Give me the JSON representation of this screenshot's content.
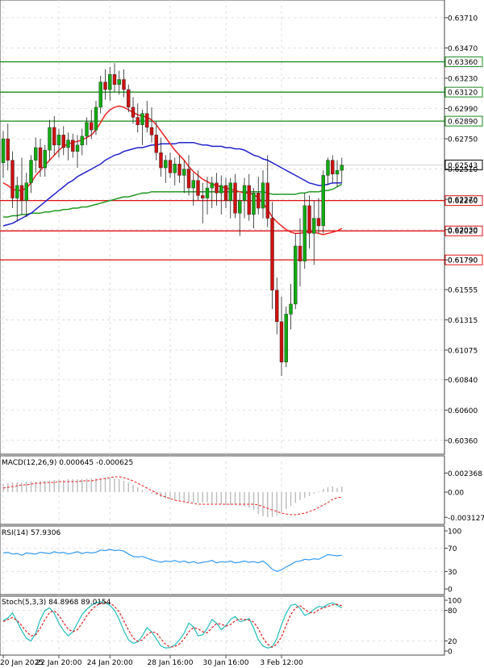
{
  "chart_data": [
    {
      "type": "candlestick",
      "panel": "price",
      "y_ticks": [
        "0.63710",
        "0.63470",
        "0.63230",
        "0.62990",
        "0.62750",
        "0.62510",
        "0.62270",
        "0.62030",
        "0.61790",
        "0.61555",
        "0.61315",
        "0.61075",
        "0.60840",
        "0.60600",
        "0.60360"
      ],
      "ylim": [
        0.6025,
        0.6385
      ],
      "current_price": "0.62543",
      "current_price_value": 0.62543,
      "levels": [
        {
          "label": "0.63360",
          "value": 0.6336,
          "color": "#1a8a1a"
        },
        {
          "label": "0.63120",
          "value": 0.6312,
          "color": "#1a8a1a"
        },
        {
          "label": "0.62890",
          "value": 0.6289,
          "color": "#1a8a1a"
        },
        {
          "label": "0.62260",
          "value": 0.6226,
          "color": "#dd1111"
        },
        {
          "label": "0.62020",
          "value": 0.6202,
          "color": "#dd1111"
        },
        {
          "label": "0.61790",
          "value": 0.6179,
          "color": "#dd1111"
        }
      ],
      "ohlc": [
        [
          0.6256,
          0.6281,
          0.6244,
          0.6275
        ],
        [
          0.6275,
          0.6287,
          0.625,
          0.6258
        ],
        [
          0.6258,
          0.6265,
          0.622,
          0.6228
        ],
        [
          0.6228,
          0.6245,
          0.621,
          0.6238
        ],
        [
          0.6238,
          0.626,
          0.6215,
          0.6226
        ],
        [
          0.6226,
          0.6248,
          0.6213,
          0.624
        ],
        [
          0.624,
          0.6262,
          0.6232,
          0.6258
        ],
        [
          0.6258,
          0.6276,
          0.6248,
          0.6268
        ],
        [
          0.6268,
          0.6275,
          0.6245,
          0.6252
        ],
        [
          0.6252,
          0.627,
          0.6245,
          0.6266
        ],
        [
          0.6266,
          0.629,
          0.6258,
          0.6284
        ],
        [
          0.6284,
          0.6293,
          0.6262,
          0.627
        ],
        [
          0.627,
          0.6283,
          0.626,
          0.6278
        ],
        [
          0.6278,
          0.6285,
          0.6262,
          0.6268
        ],
        [
          0.6268,
          0.628,
          0.6258,
          0.6274
        ],
        [
          0.6274,
          0.6279,
          0.626,
          0.6265
        ],
        [
          0.6265,
          0.6278,
          0.6252,
          0.627
        ],
        [
          0.627,
          0.6283,
          0.6262,
          0.6277
        ],
        [
          0.6277,
          0.6292,
          0.627,
          0.6288
        ],
        [
          0.6288,
          0.6298,
          0.6275,
          0.6282
        ],
        [
          0.6282,
          0.6305,
          0.6278,
          0.63
        ],
        [
          0.63,
          0.6325,
          0.6295,
          0.632
        ],
        [
          0.632,
          0.633,
          0.6306,
          0.6314
        ],
        [
          0.6314,
          0.6332,
          0.6305,
          0.6326
        ],
        [
          0.6326,
          0.6335,
          0.6312,
          0.6318
        ],
        [
          0.6318,
          0.6329,
          0.631,
          0.6322
        ],
        [
          0.6322,
          0.633,
          0.6308,
          0.6314
        ],
        [
          0.6314,
          0.6318,
          0.6296,
          0.63
        ],
        [
          0.63,
          0.6308,
          0.6287,
          0.6292
        ],
        [
          0.6292,
          0.6303,
          0.628,
          0.6286
        ],
        [
          0.6286,
          0.6298,
          0.627,
          0.6295
        ],
        [
          0.6295,
          0.6305,
          0.628,
          0.6284
        ],
        [
          0.6284,
          0.63,
          0.6272,
          0.6278
        ],
        [
          0.6278,
          0.6289,
          0.6258,
          0.6264
        ],
        [
          0.6264,
          0.6276,
          0.6245,
          0.6252
        ],
        [
          0.6252,
          0.6262,
          0.624,
          0.6258
        ],
        [
          0.6258,
          0.6264,
          0.6244,
          0.6248
        ],
        [
          0.6248,
          0.626,
          0.6238,
          0.6255
        ],
        [
          0.6255,
          0.6262,
          0.624,
          0.6246
        ],
        [
          0.6246,
          0.6258,
          0.6232,
          0.6251
        ],
        [
          0.6251,
          0.6262,
          0.623,
          0.6236
        ],
        [
          0.6236,
          0.6248,
          0.6222,
          0.6242
        ],
        [
          0.6242,
          0.625,
          0.6226,
          0.623
        ],
        [
          0.623,
          0.624,
          0.6208,
          0.6228
        ],
        [
          0.6228,
          0.6245,
          0.6215,
          0.6236
        ],
        [
          0.6236,
          0.6245,
          0.622,
          0.624
        ],
        [
          0.624,
          0.6248,
          0.6222,
          0.6232
        ],
        [
          0.6232,
          0.6246,
          0.6215,
          0.6238
        ],
        [
          0.6238,
          0.6244,
          0.622,
          0.6226
        ],
        [
          0.6226,
          0.6244,
          0.6212,
          0.624
        ],
        [
          0.624,
          0.6247,
          0.6212,
          0.6216
        ],
        [
          0.6216,
          0.6232,
          0.6198,
          0.6226
        ],
        [
          0.6226,
          0.6244,
          0.6212,
          0.6238
        ],
        [
          0.6238,
          0.6247,
          0.621,
          0.6215
        ],
        [
          0.6215,
          0.6236,
          0.6204,
          0.6232
        ],
        [
          0.6232,
          0.6245,
          0.6215,
          0.622
        ],
        [
          0.622,
          0.625,
          0.6212,
          0.624
        ],
        [
          0.624,
          0.6262,
          0.6205,
          0.6212
        ],
        [
          0.6212,
          0.6225,
          0.614,
          0.6155
        ],
        [
          0.6155,
          0.6165,
          0.612,
          0.613
        ],
        [
          0.613,
          0.615,
          0.6087,
          0.6098
        ],
        [
          0.6098,
          0.6142,
          0.6094,
          0.6136
        ],
        [
          0.6136,
          0.616,
          0.6124,
          0.6144
        ],
        [
          0.6144,
          0.62,
          0.614,
          0.619
        ],
        [
          0.619,
          0.6212,
          0.6158,
          0.6178
        ],
        [
          0.6178,
          0.6232,
          0.6172,
          0.6222
        ],
        [
          0.6222,
          0.623,
          0.6188,
          0.62
        ],
        [
          0.62,
          0.6226,
          0.6175,
          0.6212
        ],
        [
          0.6212,
          0.6228,
          0.62,
          0.6206
        ],
        [
          0.6206,
          0.625,
          0.62,
          0.6246
        ],
        [
          0.6246,
          0.626,
          0.6238,
          0.6258
        ],
        [
          0.6258,
          0.6262,
          0.624,
          0.6247
        ],
        [
          0.6247,
          0.6258,
          0.6237,
          0.625
        ],
        [
          0.625,
          0.626,
          0.624,
          0.6254
        ]
      ],
      "ma_fast": [
        0.624,
        0.6238,
        0.6235,
        0.6234,
        0.6234,
        0.6236,
        0.624,
        0.6246,
        0.625,
        0.6254,
        0.6258,
        0.6262,
        0.6266,
        0.6269,
        0.6271,
        0.6272,
        0.6273,
        0.6274,
        0.6276,
        0.6278,
        0.6282,
        0.6288,
        0.6294,
        0.6298,
        0.63,
        0.6301,
        0.63,
        0.6298,
        0.6296,
        0.6294,
        0.6293,
        0.6292,
        0.629,
        0.6286,
        0.6281,
        0.6276,
        0.6271,
        0.6266,
        0.6262,
        0.6258,
        0.6253,
        0.6249,
        0.6246,
        0.6243,
        0.6241,
        0.6239,
        0.6238,
        0.6237,
        0.6236,
        0.6235,
        0.6234,
        0.6233,
        0.6232,
        0.6232,
        0.6231,
        0.6228,
        0.6224,
        0.6219,
        0.6213,
        0.6209,
        0.6206,
        0.6203,
        0.6201,
        0.62,
        0.62,
        0.6201,
        0.6201,
        0.6201,
        0.62,
        0.6199,
        0.62,
        0.6201,
        0.6202,
        0.6204
      ],
      "ma_mid": [
        0.6206,
        0.6207,
        0.6208,
        0.621,
        0.6212,
        0.6214,
        0.6216,
        0.6219,
        0.6222,
        0.6225,
        0.6228,
        0.6231,
        0.6234,
        0.6237,
        0.624,
        0.6242,
        0.6245,
        0.6247,
        0.6249,
        0.6251,
        0.6253,
        0.6255,
        0.6258,
        0.626,
        0.6262,
        0.6263,
        0.6265,
        0.6266,
        0.6267,
        0.6268,
        0.6268,
        0.6269,
        0.627,
        0.627,
        0.6271,
        0.6271,
        0.6271,
        0.6271,
        0.6272,
        0.6272,
        0.6272,
        0.6272,
        0.6271,
        0.627,
        0.627,
        0.6269,
        0.6269,
        0.6269,
        0.6268,
        0.6268,
        0.6267,
        0.6267,
        0.6266,
        0.6264,
        0.6262,
        0.6261,
        0.6259,
        0.6258,
        0.6256,
        0.6254,
        0.6252,
        0.625,
        0.6248,
        0.6246,
        0.6244,
        0.6242,
        0.624,
        0.6239,
        0.6238,
        0.6238,
        0.6239,
        0.624,
        0.624,
        0.624
      ],
      "ma_slow": [
        0.6213,
        0.6213,
        0.6214,
        0.6214,
        0.6215,
        0.6215,
        0.6216,
        0.6216,
        0.6216,
        0.6217,
        0.6217,
        0.6218,
        0.6218,
        0.6219,
        0.6219,
        0.622,
        0.622,
        0.6221,
        0.6221,
        0.6222,
        0.6223,
        0.6224,
        0.6225,
        0.6226,
        0.6227,
        0.6228,
        0.6229,
        0.6229,
        0.623,
        0.6231,
        0.6232,
        0.6232,
        0.6233,
        0.6233,
        0.6233,
        0.6233,
        0.6233,
        0.6233,
        0.6233,
        0.6233,
        0.6233,
        0.6233,
        0.6233,
        0.6233,
        0.6233,
        0.6233,
        0.6233,
        0.6233,
        0.6233,
        0.6233,
        0.6233,
        0.6233,
        0.6233,
        0.6233,
        0.6233,
        0.6233,
        0.6233,
        0.6232,
        0.6231,
        0.6231,
        0.6231,
        0.6231,
        0.6231,
        0.6231,
        0.6232,
        0.6232,
        0.6233,
        0.6233,
        0.6233,
        0.6234,
        0.6234,
        0.6235,
        0.6237,
        0.6239
      ],
      "ma_colors": {
        "fast": "#ee2222",
        "mid": "#2222cc",
        "slow": "#229922"
      },
      "candle_colors": {
        "up": "#11aa11",
        "down": "#cc1111"
      },
      "x_ticks": [
        {
          "label": "20 Jan 2025",
          "index": 0
        },
        {
          "label": "22 Jan 20:00",
          "index": 12
        },
        {
          "label": "24 Jan 20:00",
          "index": 23
        },
        {
          "label": "28 Jan 16:00",
          "index": 36
        },
        {
          "label": "30 Jan 16:00",
          "index": 48
        },
        {
          "label": "3 Feb 12:00",
          "index": 60
        }
      ]
    },
    {
      "type": "macd",
      "panel": "macd",
      "title": "MACD(12,26,9) 0.000645 -0.000625",
      "y_ticks": [
        "0.002368",
        "0.00",
        "-0.003127"
      ],
      "ylim": [
        -0.0038,
        0.003
      ],
      "histogram": [
        0.001,
        0.0011,
        0.0012,
        0.0012,
        0.0012,
        0.0013,
        0.0013,
        0.0013,
        0.0014,
        0.0014,
        0.0014,
        0.0015,
        0.0015,
        0.0015,
        0.0016,
        0.0016,
        0.0016,
        0.0016,
        0.0017,
        0.0017,
        0.0017,
        0.0017,
        0.0018,
        0.0018,
        0.0017,
        0.0016,
        0.0014,
        0.0012,
        0.0009,
        0.0006,
        0.0003,
        0.0001,
        -0.0002,
        -0.0004,
        -0.0006,
        -0.0008,
        -0.0009,
        -0.001,
        -0.0011,
        -0.0012,
        -0.0012,
        -0.0013,
        -0.0013,
        -0.0013,
        -0.0013,
        -0.0014,
        -0.0014,
        -0.0015,
        -0.0016,
        -0.0016,
        -0.0016,
        -0.0017,
        -0.0018,
        -0.0019,
        -0.0022,
        -0.0027,
        -0.003,
        -0.0031,
        -0.0031,
        -0.0029,
        -0.0025,
        -0.0021,
        -0.0017,
        -0.0013,
        -0.001,
        -0.0007,
        -0.0005,
        -0.0002,
        0.0001,
        0.0004,
        0.0006,
        0.0007,
        0.0005,
        0.0007
      ],
      "signal": [
        0.0005,
        0.0006,
        0.0007,
        0.0008,
        0.0009,
        0.0009,
        0.001,
        0.0011,
        0.0011,
        0.0012,
        0.0012,
        0.0012,
        0.0013,
        0.0013,
        0.0013,
        0.0013,
        0.0013,
        0.0014,
        0.0014,
        0.0014,
        0.0015,
        0.0016,
        0.0017,
        0.0018,
        0.0019,
        0.0019,
        0.0018,
        0.0016,
        0.0014,
        0.0011,
        0.0008,
        0.0005,
        0.0002,
        -0.0001,
        -0.0004,
        -0.0006,
        -0.0008,
        -0.001,
        -0.0011,
        -0.0012,
        -0.0013,
        -0.0014,
        -0.0015,
        -0.0015,
        -0.0015,
        -0.0015,
        -0.0015,
        -0.0015,
        -0.0015,
        -0.0015,
        -0.0015,
        -0.0015,
        -0.0015,
        -0.0015,
        -0.0015,
        -0.0016,
        -0.0018,
        -0.002,
        -0.0022,
        -0.0024,
        -0.0026,
        -0.0027,
        -0.0028,
        -0.0028,
        -0.0027,
        -0.0026,
        -0.0024,
        -0.0022,
        -0.0019,
        -0.0016,
        -0.0013,
        -0.0009,
        -0.0007,
        -0.0006
      ]
    },
    {
      "type": "line",
      "panel": "rsi",
      "title": "RSI(14) 57.9306",
      "y_ticks": [
        "100",
        "70",
        "30",
        "0"
      ],
      "ylim": [
        0,
        100
      ],
      "values": [
        62,
        63,
        60,
        61,
        58,
        62,
        61,
        60,
        63,
        62,
        61,
        64,
        62,
        63,
        60,
        62,
        64,
        61,
        63,
        62,
        63,
        67,
        66,
        68,
        66,
        67,
        65,
        60,
        56,
        55,
        56,
        53,
        50,
        48,
        46,
        48,
        47,
        49,
        46,
        48,
        45,
        47,
        44,
        46,
        47,
        49,
        45,
        47,
        46,
        48,
        45,
        46,
        48,
        46,
        47,
        45,
        48,
        42,
        34,
        30,
        33,
        38,
        42,
        47,
        48,
        51,
        50,
        52,
        51,
        55,
        59,
        58,
        57,
        58
      ],
      "color": "#3399ee"
    },
    {
      "type": "line",
      "panel": "stoch",
      "title": "Stoch(5,3,3) 84.8968 89.0154",
      "y_ticks": [
        "100",
        "80",
        "20",
        "0"
      ],
      "ylim": [
        0,
        100
      ],
      "k": [
        60,
        65,
        75,
        58,
        40,
        25,
        20,
        35,
        62,
        80,
        85,
        74,
        55,
        40,
        30,
        38,
        55,
        72,
        82,
        90,
        95,
        97,
        95,
        90,
        80,
        62,
        40,
        22,
        15,
        18,
        30,
        46,
        38,
        24,
        10,
        6,
        7,
        12,
        22,
        35,
        55,
        48,
        30,
        32,
        45,
        62,
        55,
        42,
        50,
        62,
        68,
        58,
        60,
        64,
        45,
        22,
        10,
        6,
        8,
        25,
        52,
        75,
        90,
        92,
        84,
        70,
        74,
        82,
        88,
        86,
        92,
        95,
        90,
        85
      ],
      "d": [
        58,
        62,
        66,
        60,
        50,
        38,
        30,
        32,
        45,
        62,
        76,
        79,
        70,
        56,
        43,
        38,
        42,
        55,
        69,
        81,
        89,
        94,
        96,
        94,
        88,
        77,
        60,
        41,
        26,
        19,
        22,
        32,
        38,
        36,
        24,
        13,
        8,
        9,
        14,
        24,
        38,
        46,
        44,
        38,
        36,
        46,
        54,
        53,
        49,
        52,
        60,
        63,
        62,
        61,
        57,
        44,
        26,
        13,
        8,
        14,
        28,
        51,
        72,
        85,
        89,
        82,
        76,
        75,
        81,
        85,
        88,
        91,
        92,
        89
      ],
      "colors": {
        "k": "#22bbbb",
        "d": "#dd2222"
      }
    }
  ]
}
